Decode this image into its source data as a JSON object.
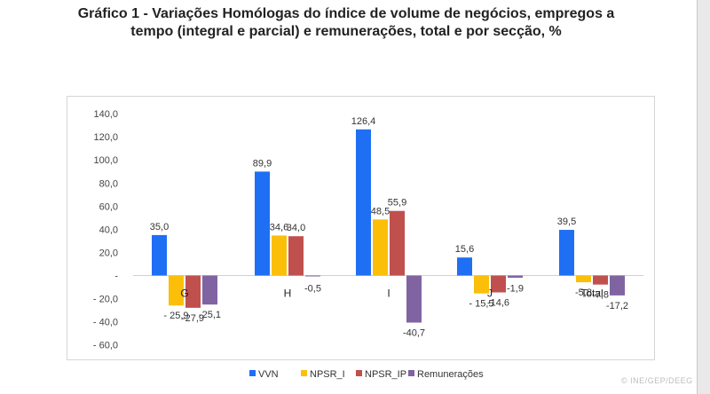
{
  "title_lines": [
    "Gráfico 1 - Variações Homólogas do índice de volume de negócios, empregos a",
    "tempo (integral e parcial) e remunerações, total e por secção, %"
  ],
  "watermark": "© INE/GEP/DEEG",
  "chart_data": {
    "type": "bar",
    "categories": [
      "G",
      "H",
      "I",
      "J",
      "Total"
    ],
    "series": [
      {
        "name": "VVN",
        "color": "#1f6ff5",
        "values": [
          35.0,
          89.9,
          126.4,
          15.6,
          39.5
        ]
      },
      {
        "name": "NPSR_I",
        "color": "#fbbf0a",
        "values": [
          -25.9,
          34.6,
          48.5,
          -15.5,
          -5.8
        ]
      },
      {
        "name": "NPSR_IP",
        "color": "#c0504d",
        "values": [
          -27.9,
          34.0,
          55.9,
          -14.6,
          -7.8
        ]
      },
      {
        "name": "Remunerações",
        "color": "#8064a2",
        "values": [
          -25.1,
          -0.5,
          -40.7,
          -1.9,
          -17.2
        ]
      }
    ],
    "data_labels": [
      [
        "35,0",
        "89,9",
        "126,4",
        "15,6",
        "39,5"
      ],
      [
        "- 25,9",
        "34,6",
        "48,5",
        "- 15,5",
        "-5,8"
      ],
      [
        "-27,9",
        "34,0",
        "55,9",
        "-14,6",
        "-7,8"
      ],
      [
        "-25,1",
        "-0,5",
        "-40,7",
        "-1,9",
        "-17,2"
      ]
    ],
    "y_ticks": [
      140,
      120,
      100,
      80,
      60,
      40,
      20,
      0,
      -20,
      -40,
      -60
    ],
    "y_tick_labels": [
      "140,0",
      "120,0",
      "100,0",
      "80,0",
      "60,0",
      "40,0",
      "20,0",
      "-",
      "- 20,0",
      "- 40,0",
      "- 60,0"
    ],
    "ylim": [
      -60,
      140
    ],
    "grid": false,
    "legend_position": "bottom"
  }
}
